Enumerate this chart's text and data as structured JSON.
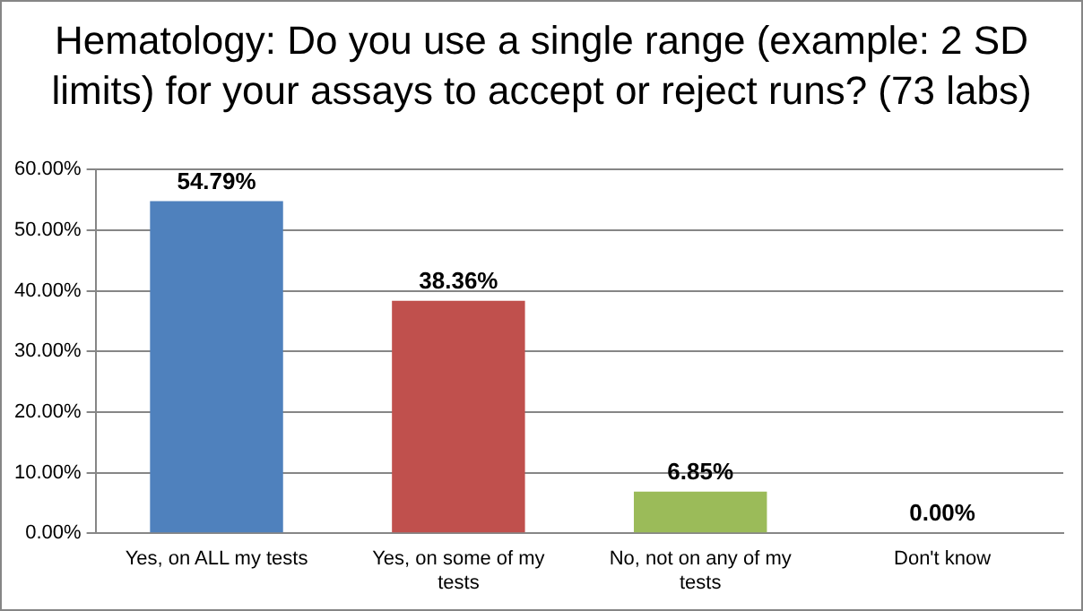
{
  "chart_data": {
    "type": "bar",
    "title": "Hematology: Do you use a single range (example: 2 SD limits) for your assays to accept or reject runs? (73 labs)",
    "categories": [
      "Yes, on ALL my tests",
      "Yes, on some of my tests",
      "No, not on any of my tests",
      "Don't know"
    ],
    "values": [
      54.79,
      38.36,
      6.85,
      0.0
    ],
    "colors": [
      "#4f81bd",
      "#c0504d",
      "#9bbb59",
      "#8064a2"
    ],
    "value_labels": [
      "54.79%",
      "38.36%",
      "6.85%",
      "0.00%"
    ],
    "ylim": [
      0,
      60
    ],
    "yticks": [
      {
        "value": 0,
        "label": "0.00%"
      },
      {
        "value": 10,
        "label": "10.00%"
      },
      {
        "value": 20,
        "label": "20.00%"
      },
      {
        "value": 30,
        "label": "30.00%"
      },
      {
        "value": 40,
        "label": "40.00%"
      },
      {
        "value": 50,
        "label": "50.00%"
      },
      {
        "value": 60,
        "label": "60.00%"
      }
    ],
    "grid": "y",
    "legend": false
  }
}
